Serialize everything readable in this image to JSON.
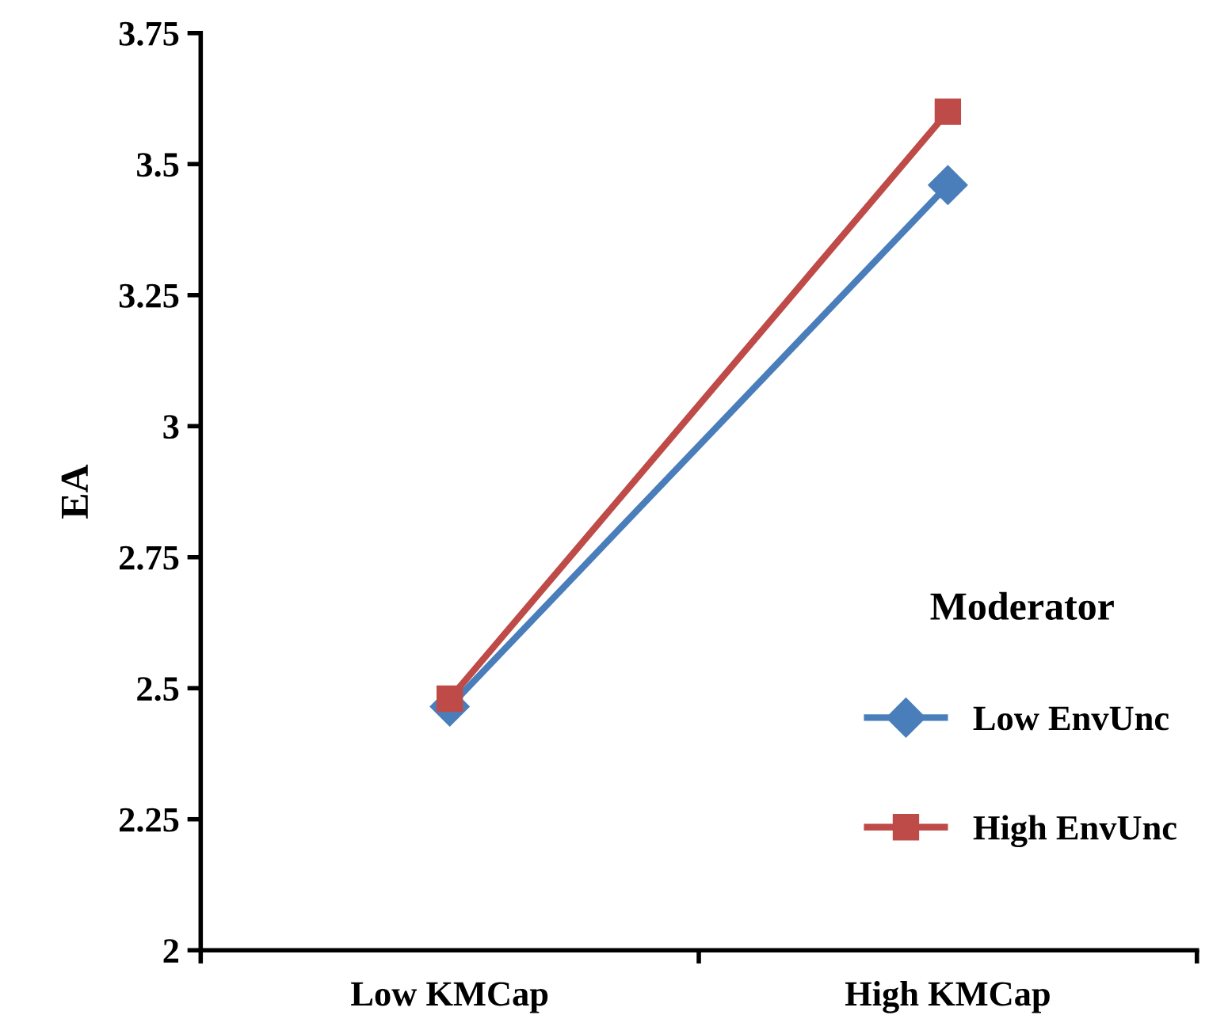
{
  "chart_data": {
    "type": "line",
    "ylabel": "EA",
    "legend_title": "Moderator",
    "categories": [
      "Low KMCap",
      "High KMCap"
    ],
    "series": [
      {
        "name": "Low EnvUnc",
        "color": "#4a7ebb",
        "values": [
          2.465,
          3.46
        ],
        "marker": "diamond"
      },
      {
        "name": "High EnvUnc",
        "color": "#be4b48",
        "values": [
          2.48,
          3.6
        ],
        "marker": "square"
      }
    ],
    "ylim": [
      2,
      3.75
    ],
    "yticks": [
      2,
      2.25,
      2.5,
      2.75,
      3,
      3.25,
      3.5,
      3.75
    ],
    "grid": false,
    "legend": "bottom right",
    "line_style": "solid"
  }
}
